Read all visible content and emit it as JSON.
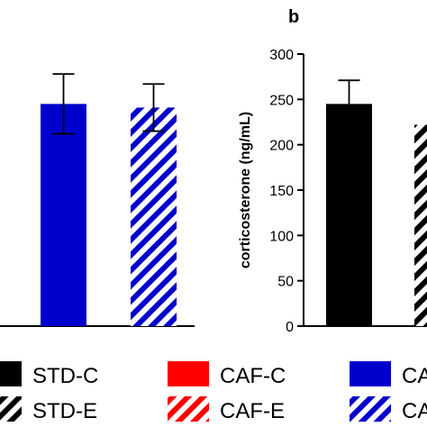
{
  "chart_data": [
    {
      "type": "bar",
      "panel": "",
      "categories": [
        "CAF-C",
        "CAF-E"
      ],
      "series": [
        {
          "values": [
            245,
            241
          ],
          "error": [
            33,
            26
          ]
        }
      ],
      "ylim": [
        0,
        300
      ]
    },
    {
      "type": "bar",
      "panel": "b",
      "categories": [
        "STD-C",
        "STD-E"
      ],
      "series": [
        {
          "values": [
            245,
            222
          ],
          "error": [
            26,
            null
          ]
        }
      ],
      "ylabel": "corticosterone (ng/mL)",
      "ylim": [
        0,
        300
      ],
      "yticks": [
        0,
        50,
        100,
        150,
        200,
        250,
        300
      ]
    }
  ],
  "legend": [
    {
      "label": "STD-C",
      "color": "#000000",
      "pattern": "solid"
    },
    {
      "label": "CAF-C",
      "color": "#ff0000",
      "pattern": "solid"
    },
    {
      "label": "CAF-C",
      "color": "#0000cc",
      "pattern": "solid"
    },
    {
      "label": "STD-E",
      "color": "#000000",
      "pattern": "striped"
    },
    {
      "label": "CAF-E",
      "color": "#ff0000",
      "pattern": "striped"
    },
    {
      "label": "CAF-E",
      "color": "#0000cc",
      "pattern": "striped"
    }
  ],
  "colors": {
    "std": "#000000",
    "caf_red": "#ff0000",
    "caf_blue": "#0000cc"
  }
}
